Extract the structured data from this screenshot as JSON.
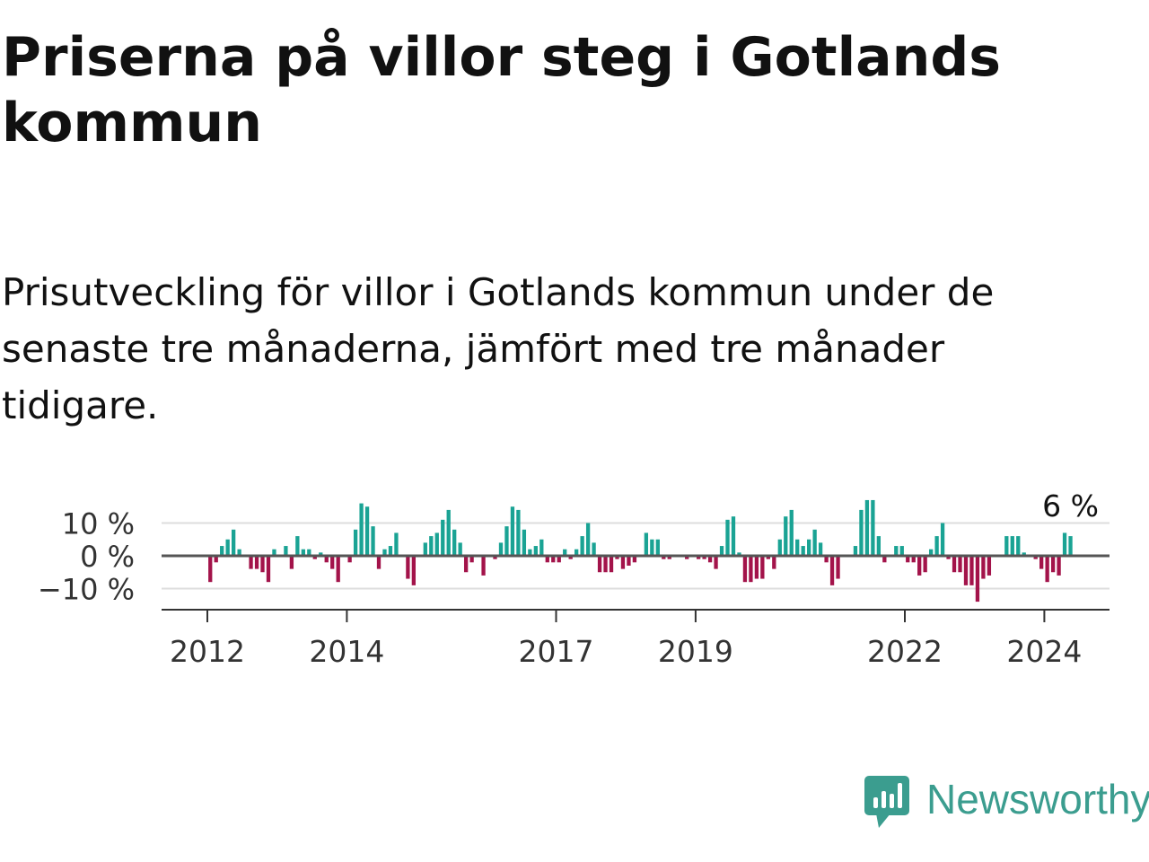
{
  "title": "Priserna på villor steg i Gotlands kommun",
  "subtitle": "Prisutveckling för villor i Gotlands kommun under de senaste tre månaderna, jämfört med tre månader tidigare.",
  "brand": {
    "name": "Newsworthy",
    "color": "#3b9d8f",
    "icon": "newsworthy-chart-bubble-icon"
  },
  "colors": {
    "positive": "#1aa394",
    "negative": "#a3134a",
    "zero_line": "#555555",
    "grid": "#dddddd",
    "axis": "#333333"
  },
  "chart_data": {
    "type": "bar",
    "unit": "%",
    "ylim": [
      -16,
      16
    ],
    "yticks": [
      {
        "value": 10,
        "label": "10 %"
      },
      {
        "value": 0,
        "label": "0 %"
      },
      {
        "value": -10,
        "label": "−10 %"
      }
    ],
    "xticks": [
      {
        "value": 2012,
        "label": "2012"
      },
      {
        "value": 2014,
        "label": "2014"
      },
      {
        "value": 2017,
        "label": "2017"
      },
      {
        "value": 2019,
        "label": "2019"
      },
      {
        "value": 2022,
        "label": "2022"
      },
      {
        "value": 2024,
        "label": "2024"
      }
    ],
    "grid": true,
    "legend": "none",
    "x_start": 2012,
    "x_step_months": 1,
    "annotation": {
      "text": "6 %",
      "target": "last"
    },
    "values": [
      -8,
      -2,
      3,
      5,
      8,
      2,
      0,
      -4,
      -4,
      -5,
      -8,
      2,
      0,
      3,
      -4,
      6,
      2,
      2,
      -1,
      1,
      -2,
      -4,
      -8,
      0,
      -2,
      8,
      16,
      15,
      9,
      -4,
      2,
      3,
      7,
      0,
      -7,
      -9,
      0,
      4,
      6,
      7,
      11,
      14,
      8,
      4,
      -5,
      -2,
      0,
      -6,
      0,
      -1,
      4,
      9,
      15,
      14,
      8,
      2,
      3,
      5,
      -2,
      -2,
      -2,
      2,
      -1,
      2,
      6,
      10,
      4,
      -5,
      -5,
      -5,
      -1,
      -4,
      -3,
      -2,
      0,
      7,
      5,
      5,
      -1,
      -1,
      0,
      0,
      -1,
      0,
      -1,
      -1,
      -2,
      -4,
      3,
      11,
      12,
      1,
      -8,
      -8,
      -7,
      -7,
      -1,
      -4,
      5,
      12,
      14,
      5,
      3,
      5,
      8,
      4,
      -2,
      -9,
      -7,
      0,
      0,
      3,
      14,
      17,
      17,
      6,
      -2,
      0,
      3,
      3,
      -2,
      -2,
      -6,
      -5,
      2,
      6,
      10,
      -1,
      -5,
      -5,
      -9,
      -9,
      -14,
      -7,
      -6,
      0,
      0,
      6,
      6,
      6,
      1,
      0,
      -1,
      -4,
      -8,
      -5,
      -6,
      7,
      6
    ]
  }
}
